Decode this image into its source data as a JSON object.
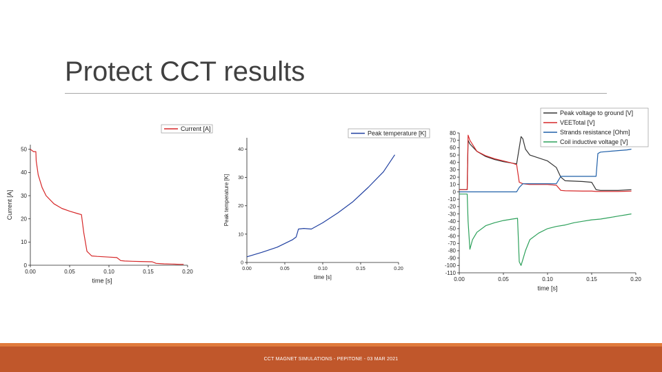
{
  "slide": {
    "title": "Protect CCT results",
    "footer": "CCT MAGNET SIMULATIONS - PEPITONE - 03 MAR 2021"
  },
  "colors": {
    "title": "#404040",
    "footer_bar": "#c0572b",
    "footer_accent": "#e07a3c"
  },
  "chart_data": [
    {
      "type": "line",
      "title": "",
      "xlabel": "time [s]",
      "ylabel": "Current [A]",
      "xlim": [
        0,
        0.2
      ],
      "ylim": [
        0,
        52
      ],
      "x_ticks": [
        0,
        0.05,
        0.1,
        0.15,
        0.2
      ],
      "x_tick_labels": [
        "0.00",
        "0.05",
        "0.10",
        "0.15",
        "0.20"
      ],
      "y_ticks": [
        0,
        10,
        20,
        30,
        40,
        50
      ],
      "y_tick_labels": [
        "0",
        "10",
        "20",
        "30",
        "40",
        "50"
      ],
      "legend_position": "top-right",
      "series": [
        {
          "name": "Current [A]",
          "color": "#d62728",
          "x": [
            0,
            0.004,
            0.007,
            0.0075,
            0.01,
            0.015,
            0.02,
            0.03,
            0.04,
            0.05,
            0.06,
            0.065,
            0.068,
            0.072,
            0.078,
            0.085,
            0.1,
            0.11,
            0.115,
            0.12,
            0.13,
            0.14,
            0.155,
            0.16,
            0.17,
            0.18,
            0.19,
            0.195
          ],
          "y": [
            50,
            49,
            49,
            45,
            39,
            33.5,
            30,
            26.5,
            24.5,
            23.3,
            22.3,
            21.8,
            14,
            6,
            4,
            3.8,
            3.5,
            3.3,
            2,
            1.8,
            1.7,
            1.6,
            1.5,
            0.8,
            0.6,
            0.5,
            0.4,
            0.4
          ]
        }
      ]
    },
    {
      "type": "line",
      "title": "",
      "xlabel": "time [s]",
      "ylabel": "Peak temperature [K]",
      "xlim": [
        0,
        0.2
      ],
      "ylim": [
        0,
        44
      ],
      "x_ticks": [
        0,
        0.05,
        0.1,
        0.15,
        0.2
      ],
      "x_tick_labels": [
        "0.00",
        "0.05",
        "0.10",
        "0.15",
        "0.20"
      ],
      "y_ticks": [
        0,
        10,
        20,
        30,
        40
      ],
      "y_tick_labels": [
        "0",
        "10",
        "20",
        "30",
        "40"
      ],
      "legend_position": "top-right",
      "series": [
        {
          "name": "Peak temperature [K]",
          "color": "#1f3fa0",
          "x": [
            0,
            0.02,
            0.04,
            0.06,
            0.065,
            0.068,
            0.075,
            0.085,
            0.1,
            0.12,
            0.14,
            0.16,
            0.18,
            0.195
          ],
          "y": [
            2,
            3.6,
            5.4,
            8,
            9,
            11.8,
            12,
            11.8,
            14,
            17.5,
            21.5,
            26.5,
            32,
            38
          ]
        }
      ]
    },
    {
      "type": "line",
      "title": "",
      "xlabel": "time [s]",
      "ylabel": "",
      "xlim": [
        0,
        0.2
      ],
      "ylim": [
        -110,
        80
      ],
      "x_ticks": [
        0,
        0.05,
        0.1,
        0.15,
        0.2
      ],
      "x_tick_labels": [
        "0.00",
        "0.05",
        "0.10",
        "0.15",
        "0.20"
      ],
      "y_ticks": [
        80,
        70,
        60,
        50,
        40,
        30,
        20,
        10,
        0,
        -10,
        -20,
        -30,
        -40,
        -50,
        -60,
        -70,
        -80,
        -90,
        -100,
        -110
      ],
      "y_tick_labels": [
        "80",
        "70",
        "60",
        "50",
        "40",
        "30",
        "20",
        "10",
        "0",
        "-10",
        "-20",
        "-30",
        "-40",
        "-50",
        "-60",
        "-70",
        "-80",
        "-90",
        "-100",
        "-110"
      ],
      "legend_position": "top-right",
      "series": [
        {
          "name": "Peak voltage to ground [V]",
          "color": "#333333",
          "x": [
            0,
            0.009,
            0.01,
            0.012,
            0.02,
            0.03,
            0.04,
            0.05,
            0.06,
            0.065,
            0.068,
            0.07,
            0.072,
            0.075,
            0.08,
            0.09,
            0.1,
            0.11,
            0.115,
            0.12,
            0.14,
            0.15,
            0.155,
            0.16,
            0.18,
            0.195
          ],
          "y": [
            3,
            3,
            70,
            65,
            55,
            48,
            44,
            41,
            39,
            38,
            60,
            75,
            72,
            58,
            50,
            46,
            42,
            33,
            20,
            15,
            14,
            13,
            3,
            2,
            2,
            3
          ]
        },
        {
          "name": "VEETotal [V]",
          "color": "#d62728",
          "x": [
            0,
            0.009,
            0.01,
            0.012,
            0.02,
            0.03,
            0.04,
            0.05,
            0.06,
            0.065,
            0.068,
            0.072,
            0.08,
            0.1,
            0.11,
            0.115,
            0.12,
            0.14,
            0.15,
            0.155,
            0.16,
            0.18,
            0.195
          ],
          "y": [
            3,
            3,
            77,
            70,
            55,
            49,
            45,
            42,
            39,
            37,
            13,
            11,
            10,
            10,
            9,
            2,
            1.5,
            1,
            1,
            0.5,
            0.5,
            0.5,
            1
          ]
        },
        {
          "name": "Strands resistance [Ohm]",
          "color": "#1f5fa8",
          "x": [
            0,
            0.009,
            0.01,
            0.065,
            0.068,
            0.072,
            0.08,
            0.1,
            0.11,
            0.115,
            0.12,
            0.15,
            0.155,
            0.157,
            0.16,
            0.18,
            0.19,
            0.195
          ],
          "y": [
            0,
            0,
            0,
            0,
            6,
            11,
            11,
            11,
            11,
            21,
            21,
            21,
            21,
            52,
            54,
            56,
            57,
            58
          ]
        },
        {
          "name": "Coil inductive voltage [V]",
          "color": "#2ca05a",
          "x": [
            0,
            0.009,
            0.01,
            0.012,
            0.015,
            0.02,
            0.03,
            0.04,
            0.05,
            0.06,
            0.066,
            0.068,
            0.07,
            0.072,
            0.075,
            0.08,
            0.09,
            0.1,
            0.11,
            0.12,
            0.13,
            0.14,
            0.15,
            0.16,
            0.17,
            0.18,
            0.19,
            0.195
          ],
          "y": [
            -3,
            -3,
            -40,
            -78,
            -65,
            -55,
            -46,
            -42,
            -39,
            -37,
            -36,
            -95,
            -100,
            -92,
            -80,
            -65,
            -56,
            -50,
            -47,
            -45,
            -42,
            -40,
            -38,
            -37,
            -35,
            -33,
            -31,
            -30
          ]
        }
      ]
    }
  ]
}
